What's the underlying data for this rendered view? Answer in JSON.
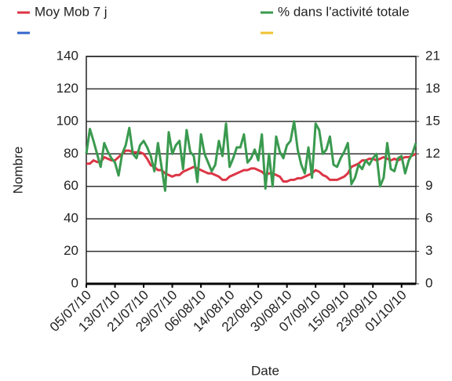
{
  "chart_data": {
    "type": "line",
    "xlabel": "Date",
    "ylabel": "Nombre",
    "categories": [
      "05/07/10",
      null,
      null,
      null,
      null,
      null,
      null,
      null,
      "13/07/10",
      null,
      null,
      null,
      null,
      null,
      null,
      null,
      "21/07/10",
      null,
      null,
      null,
      null,
      null,
      null,
      null,
      "29/07/10",
      null,
      null,
      null,
      null,
      null,
      null,
      null,
      "06/08/10",
      null,
      null,
      null,
      null,
      null,
      null,
      null,
      "14/08/10",
      null,
      null,
      null,
      null,
      null,
      null,
      null,
      "22/08/10",
      null,
      null,
      null,
      null,
      null,
      null,
      null,
      "30/08/10",
      null,
      null,
      null,
      null,
      null,
      null,
      null,
      "07/09/10",
      null,
      null,
      null,
      null,
      null,
      null,
      null,
      "15/09/10",
      null,
      null,
      null,
      null,
      null,
      null,
      null,
      "23/09/10",
      null,
      null,
      null,
      null,
      null,
      null,
      null,
      "01/10/10",
      null,
      null,
      null,
      null
    ],
    "ylim": [
      0,
      140
    ],
    "yticks": [
      0,
      20,
      40,
      60,
      80,
      100,
      120,
      140
    ],
    "y2lim": [
      0,
      21
    ],
    "y2ticks": [
      0,
      3,
      6,
      9,
      12,
      15,
      18,
      21
    ],
    "grid": true,
    "series": [
      {
        "name": "Moy Mob 7 j",
        "color": "#dc3545",
        "values": [
          74,
          74,
          76,
          75,
          75,
          78,
          77,
          76,
          76,
          78,
          80,
          82,
          82,
          81,
          81,
          81,
          80,
          77,
          73,
          72,
          70,
          70,
          68,
          67,
          66,
          67,
          67,
          69,
          70,
          71,
          72,
          71,
          70,
          69,
          68,
          68,
          67,
          66,
          64,
          64,
          66,
          67,
          68,
          69,
          70,
          70,
          71,
          71,
          70,
          69,
          67,
          68,
          68,
          67,
          66,
          63,
          63,
          64,
          64,
          65,
          65,
          66,
          67,
          68,
          70,
          69,
          67,
          66,
          64,
          64,
          64,
          65,
          66,
          68,
          72,
          73,
          74,
          76,
          76,
          77,
          77,
          76,
          77,
          78,
          77,
          76,
          77,
          76,
          77,
          78,
          78,
          79,
          80
        ]
      },
      {
        "name": "% dans l'activité totale",
        "color": "#3a9a4f",
        "axis": "y2",
        "values": [
          12.0,
          14.3,
          13.2,
          12.0,
          10.8,
          13.0,
          12.2,
          11.6,
          11.2,
          10.0,
          12.0,
          12.8,
          14.4,
          12.0,
          11.6,
          12.8,
          13.2,
          12.6,
          11.8,
          10.4,
          13.0,
          10.8,
          8.6,
          14.0,
          12.0,
          12.8,
          13.2,
          10.6,
          14.2,
          12.2,
          11.8,
          9.4,
          13.8,
          12.0,
          11.2,
          10.4,
          11.0,
          13.2,
          11.8,
          14.8,
          10.8,
          11.6,
          12.6,
          12.6,
          13.8,
          11.2,
          11.6,
          12.4,
          11.4,
          13.8,
          8.8,
          12.0,
          9.0,
          13.6,
          12.2,
          11.6,
          12.8,
          13.2,
          15.0,
          12.4,
          11.0,
          10.2,
          12.6,
          9.8,
          14.8,
          14.2,
          12.0,
          12.4,
          13.6,
          11.0,
          10.8,
          11.6,
          12.2,
          13.0,
          9.2,
          9.8,
          11.0,
          10.6,
          11.4,
          11.0,
          11.6,
          12.0,
          9.0,
          9.8,
          13.0,
          10.6,
          10.4,
          11.6,
          11.8,
          10.2,
          11.4,
          12.0,
          13.0
        ]
      },
      {
        "color": "#3366cc"
      },
      {
        "color": "#f1c232"
      }
    ]
  }
}
